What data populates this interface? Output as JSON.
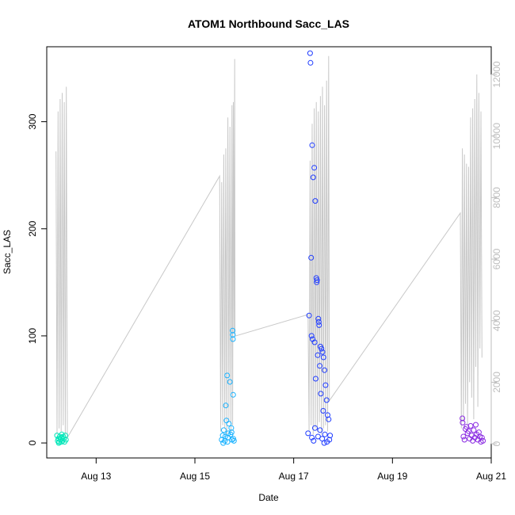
{
  "chart_data": {
    "type": "scatter",
    "title": "ATOM1 Northbound Sacc_LAS",
    "xlabel": "Date",
    "ylabel": "Sacc_LAS",
    "x_ticks": [
      "Aug 13",
      "Aug 15",
      "Aug 17",
      "Aug 19",
      "Aug 21"
    ],
    "y_ticks": [
      "0",
      "100",
      "200",
      "300"
    ],
    "y2_ticks": [
      "0",
      "2000",
      "4000",
      "6000",
      "8000",
      "10000",
      "12000"
    ],
    "xlim": [
      "2023-08-12 00:00",
      "2023-08-21 00:00"
    ],
    "ylim": [
      -14,
      370
    ],
    "y2lim": [
      -460,
      12900
    ],
    "colors": {
      "aug12": "#00e6b8",
      "aug15": "#1ab2ff",
      "aug17": "#1f3cff",
      "aug20": "#8a2be2",
      "line": "#c8c8c8",
      "right_axis": "#bdbdbd"
    },
    "series": [
      {
        "color_key": "aug12",
        "points": [
          [
            "2023-08-12 05:00",
            7
          ],
          [
            "2023-08-12 05:20",
            2
          ],
          [
            "2023-08-12 05:40",
            4
          ],
          [
            "2023-08-12 06:00",
            1
          ],
          [
            "2023-08-12 06:20",
            6
          ],
          [
            "2023-08-12 06:40",
            3
          ],
          [
            "2023-08-12 07:00",
            5
          ],
          [
            "2023-08-12 07:20",
            8
          ],
          [
            "2023-08-12 07:40",
            2
          ],
          [
            "2023-08-12 08:00",
            6
          ],
          [
            "2023-08-12 08:20",
            4
          ],
          [
            "2023-08-12 08:40",
            1
          ],
          [
            "2023-08-12 09:00",
            7
          ],
          [
            "2023-08-12 09:20",
            3
          ],
          [
            "2023-08-12 05:50",
            0
          ],
          [
            "2023-08-12 07:10",
            1
          ]
        ]
      },
      {
        "color_key": "aug15",
        "points": [
          [
            "2023-08-15 13:00",
            3
          ],
          [
            "2023-08-15 13:30",
            7
          ],
          [
            "2023-08-15 14:00",
            12
          ],
          [
            "2023-08-15 14:30",
            2
          ],
          [
            "2023-08-15 15:00",
            35
          ],
          [
            "2023-08-15 15:20",
            21
          ],
          [
            "2023-08-15 15:40",
            63
          ],
          [
            "2023-08-15 16:00",
            5
          ],
          [
            "2023-08-15 16:30",
            18
          ],
          [
            "2023-08-15 17:00",
            57
          ],
          [
            "2023-08-15 17:20",
            8
          ],
          [
            "2023-08-15 17:40",
            14
          ],
          [
            "2023-08-15 18:00",
            3
          ],
          [
            "2023-08-15 18:20",
            105
          ],
          [
            "2023-08-15 18:25",
            101
          ],
          [
            "2023-08-15 18:30",
            97
          ],
          [
            "2023-08-15 18:35",
            45
          ],
          [
            "2023-08-15 18:40",
            4
          ],
          [
            "2023-08-15 19:00",
            2
          ],
          [
            "2023-08-15 16:10",
            9
          ],
          [
            "2023-08-15 15:50",
            1
          ],
          [
            "2023-08-15 14:45",
            6
          ],
          [
            "2023-08-15 17:50",
            10
          ],
          [
            "2023-08-15 13:45",
            0
          ]
        ]
      },
      {
        "color_key": "aug17",
        "points": [
          [
            "2023-08-17 08:00",
            364
          ],
          [
            "2023-08-17 08:10",
            355
          ],
          [
            "2023-08-17 09:00",
            278
          ],
          [
            "2023-08-17 10:00",
            257
          ],
          [
            "2023-08-17 09:30",
            248
          ],
          [
            "2023-08-17 10:30",
            226
          ],
          [
            "2023-08-17 08:30",
            173
          ],
          [
            "2023-08-17 11:00",
            154
          ],
          [
            "2023-08-17 11:10",
            150
          ],
          [
            "2023-08-17 11:20",
            152
          ],
          [
            "2023-08-17 07:30",
            119
          ],
          [
            "2023-08-17 12:00",
            116
          ],
          [
            "2023-08-17 12:10",
            113
          ],
          [
            "2023-08-17 12:20",
            110
          ],
          [
            "2023-08-17 08:40",
            100
          ],
          [
            "2023-08-17 09:10",
            97
          ],
          [
            "2023-08-17 10:10",
            94
          ],
          [
            "2023-08-17 13:00",
            90
          ],
          [
            "2023-08-17 13:30",
            88
          ],
          [
            "2023-08-17 14:00",
            85
          ],
          [
            "2023-08-17 11:40",
            82
          ],
          [
            "2023-08-17 14:30",
            80
          ],
          [
            "2023-08-17 12:40",
            72
          ],
          [
            "2023-08-17 15:00",
            68
          ],
          [
            "2023-08-17 10:40",
            60
          ],
          [
            "2023-08-17 15:30",
            54
          ],
          [
            "2023-08-17 13:10",
            46
          ],
          [
            "2023-08-17 16:00",
            40
          ],
          [
            "2023-08-17 14:20",
            30
          ],
          [
            "2023-08-17 16:30",
            26
          ],
          [
            "2023-08-17 17:00",
            22
          ],
          [
            "2023-08-17 07:00",
            9
          ],
          [
            "2023-08-17 08:50",
            5
          ],
          [
            "2023-08-17 12:50",
            12
          ],
          [
            "2023-08-17 15:10",
            8
          ],
          [
            "2023-08-17 17:20",
            3
          ],
          [
            "2023-08-17 09:40",
            2
          ],
          [
            "2023-08-17 11:50",
            6
          ],
          [
            "2023-08-17 13:50",
            4
          ],
          [
            "2023-08-17 16:10",
            1
          ],
          [
            "2023-08-17 17:40",
            7
          ],
          [
            "2023-08-17 10:20",
            14
          ],
          [
            "2023-08-17 14:50",
            0
          ]
        ]
      },
      {
        "color_key": "aug20",
        "points": [
          [
            "2023-08-20 10:00",
            23
          ],
          [
            "2023-08-20 10:05",
            19
          ],
          [
            "2023-08-20 10:30",
            6
          ],
          [
            "2023-08-20 11:00",
            3
          ],
          [
            "2023-08-20 12:00",
            15
          ],
          [
            "2023-08-20 12:30",
            9
          ],
          [
            "2023-08-20 13:00",
            11
          ],
          [
            "2023-08-20 13:30",
            4
          ],
          [
            "2023-08-20 14:00",
            16
          ],
          [
            "2023-08-20 14:30",
            7
          ],
          [
            "2023-08-20 15:00",
            2
          ],
          [
            "2023-08-20 15:30",
            12
          ],
          [
            "2023-08-20 16:00",
            5
          ],
          [
            "2023-08-20 16:30",
            17
          ],
          [
            "2023-08-20 17:00",
            8
          ],
          [
            "2023-08-20 17:30",
            3
          ],
          [
            "2023-08-20 18:00",
            10
          ],
          [
            "2023-08-20 18:30",
            6
          ],
          [
            "2023-08-20 19:00",
            1
          ],
          [
            "2023-08-20 11:30",
            13
          ],
          [
            "2023-08-20 19:30",
            5
          ],
          [
            "2023-08-20 20:00",
            2
          ]
        ]
      }
    ],
    "line_series": {
      "axis": "right",
      "points": [
        [
          "2023-08-12 04:30",
          9500
        ],
        [
          "2023-08-12 05:00",
          300
        ],
        [
          "2023-08-12 05:30",
          10800
        ],
        [
          "2023-08-12 06:00",
          500
        ],
        [
          "2023-08-12 06:30",
          11200
        ],
        [
          "2023-08-12 07:00",
          400
        ],
        [
          "2023-08-12 07:30",
          11400
        ],
        [
          "2023-08-12 08:00",
          600
        ],
        [
          "2023-08-12 08:30",
          11100
        ],
        [
          "2023-08-12 09:00",
          300
        ],
        [
          "2023-08-12 09:30",
          11600
        ],
        [
          "2023-08-12 10:00",
          200
        ],
        [
          "2023-08-15 12:00",
          8700
        ],
        [
          "2023-08-15 12:30",
          400
        ],
        [
          "2023-08-15 13:00",
          8500
        ],
        [
          "2023-08-15 13:30",
          600
        ],
        [
          "2023-08-15 14:00",
          9400
        ],
        [
          "2023-08-15 14:30",
          500
        ],
        [
          "2023-08-15 15:00",
          9600
        ],
        [
          "2023-08-15 15:30",
          300
        ],
        [
          "2023-08-15 16:00",
          10600
        ],
        [
          "2023-08-15 16:30",
          700
        ],
        [
          "2023-08-15 17:00",
          10300
        ],
        [
          "2023-08-15 17:30",
          400
        ],
        [
          "2023-08-15 18:00",
          11000
        ],
        [
          "2023-08-15 18:20",
          600
        ],
        [
          "2023-08-15 18:40",
          11100
        ],
        [
          "2023-08-15 19:00",
          3600
        ],
        [
          "2023-08-15 19:20",
          12500
        ],
        [
          "2023-08-15 19:30",
          3500
        ],
        [
          "2023-08-17 07:00",
          4200
        ],
        [
          "2023-08-17 07:30",
          400
        ],
        [
          "2023-08-17 08:00",
          9200
        ],
        [
          "2023-08-17 08:30",
          600
        ],
        [
          "2023-08-17 09:00",
          10400
        ],
        [
          "2023-08-17 09:30",
          300
        ],
        [
          "2023-08-17 10:00",
          10900
        ],
        [
          "2023-08-17 10:30",
          500
        ],
        [
          "2023-08-17 11:00",
          11100
        ],
        [
          "2023-08-17 11:30",
          400
        ],
        [
          "2023-08-17 12:00",
          10800
        ],
        [
          "2023-08-17 12:30",
          700
        ],
        [
          "2023-08-17 13:00",
          11300
        ],
        [
          "2023-08-17 13:30",
          300
        ],
        [
          "2023-08-17 14:00",
          11600
        ],
        [
          "2023-08-17 14:30",
          500
        ],
        [
          "2023-08-17 15:00",
          11000
        ],
        [
          "2023-08-17 15:30",
          600
        ],
        [
          "2023-08-17 16:00",
          11800
        ],
        [
          "2023-08-17 16:30",
          400
        ],
        [
          "2023-08-17 17:00",
          12600
        ],
        [
          "2023-08-17 17:20",
          1400
        ],
        [
          "2023-08-20 09:00",
          7500
        ],
        [
          "2023-08-20 09:30",
          500
        ],
        [
          "2023-08-20 10:00",
          9600
        ],
        [
          "2023-08-20 10:30",
          700
        ],
        [
          "2023-08-20 11:00",
          9400
        ],
        [
          "2023-08-20 11:30",
          1300
        ],
        [
          "2023-08-20 12:00",
          9100
        ],
        [
          "2023-08-20 12:30",
          600
        ],
        [
          "2023-08-20 13:00",
          9000
        ],
        [
          "2023-08-20 13:30",
          2000
        ],
        [
          "2023-08-20 14:00",
          10600
        ],
        [
          "2023-08-20 14:30",
          1500
        ],
        [
          "2023-08-20 15:00",
          10900
        ],
        [
          "2023-08-20 15:30",
          800
        ],
        [
          "2023-08-20 16:00",
          11200
        ],
        [
          "2023-08-20 16:30",
          2500
        ],
        [
          "2023-08-20 17:00",
          12000
        ],
        [
          "2023-08-20 17:30",
          1200
        ],
        [
          "2023-08-20 18:00",
          11400
        ],
        [
          "2023-08-20 18:30",
          3100
        ],
        [
          "2023-08-20 19:00",
          10800
        ],
        [
          "2023-08-20 19:30",
          2800
        ]
      ]
    },
    "grid": false,
    "legend": "none"
  }
}
